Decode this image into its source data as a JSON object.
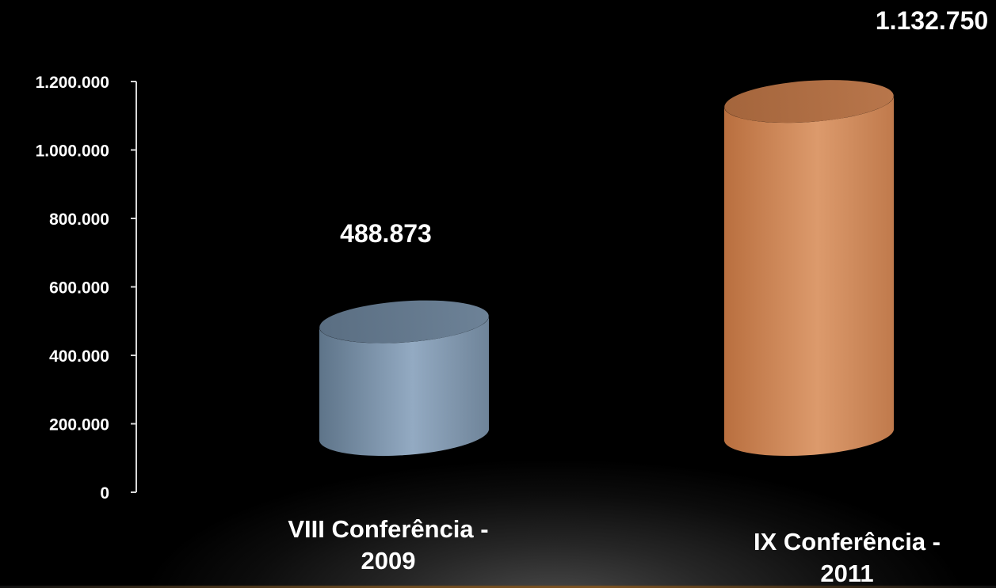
{
  "chart_data": {
    "type": "bar",
    "style": "3d-cylinder",
    "categories": [
      [
        "VIII  Conferência -",
        "2009"
      ],
      [
        "IX  Conferência -",
        "2011"
      ]
    ],
    "values": [
      488873,
      1132750
    ],
    "data_labels": [
      "488.873",
      "1.132.750"
    ],
    "colors": [
      "#8fa6bd",
      "#d9956a"
    ],
    "ylim": [
      0,
      1200000
    ],
    "y_ticks": [
      {
        "value": 0,
        "label": "0"
      },
      {
        "value": 200000,
        "label": "200.000"
      },
      {
        "value": 400000,
        "label": "400.000"
      },
      {
        "value": 600000,
        "label": "600.000"
      },
      {
        "value": 800000,
        "label": "800.000"
      },
      {
        "value": 1000000,
        "label": "1.000.000"
      },
      {
        "value": 1200000,
        "label": "1.200.000"
      }
    ],
    "grid": false,
    "legend": "none",
    "title": "",
    "xlabel": "",
    "ylabel": ""
  }
}
